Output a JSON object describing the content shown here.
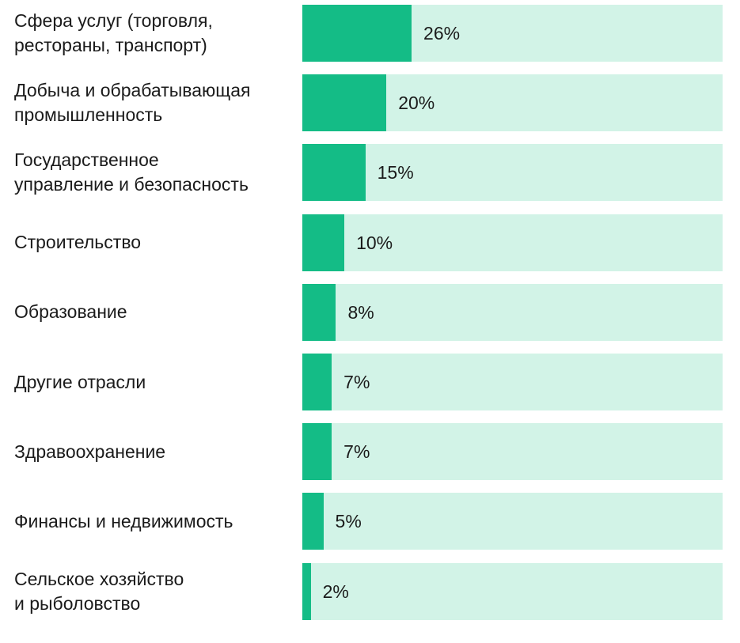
{
  "chart_data": {
    "type": "bar",
    "orientation": "horizontal",
    "categories": [
      "Сфера услуг (торговля,\nрестораны, транспорт)",
      "Добыча и обрабатывающая\nпромышленность",
      "Государственное\nуправление и безопасность",
      "Строительство",
      "Образование",
      "Другие отрасли",
      "Здравоохранение",
      "Финансы и недвижимость",
      "Сельское хозяйство\nи рыболовство"
    ],
    "values": [
      26,
      20,
      15,
      10,
      8,
      7,
      7,
      5,
      2
    ],
    "value_labels": [
      "26%",
      "20%",
      "15%",
      "10%",
      "8%",
      "7%",
      "7%",
      "5%",
      "2%"
    ],
    "xlim": [
      0,
      100
    ],
    "grid": false,
    "colors": {
      "bar": "#14bc86",
      "track": "#d2f3e7",
      "text": "#1b1b1b"
    }
  }
}
